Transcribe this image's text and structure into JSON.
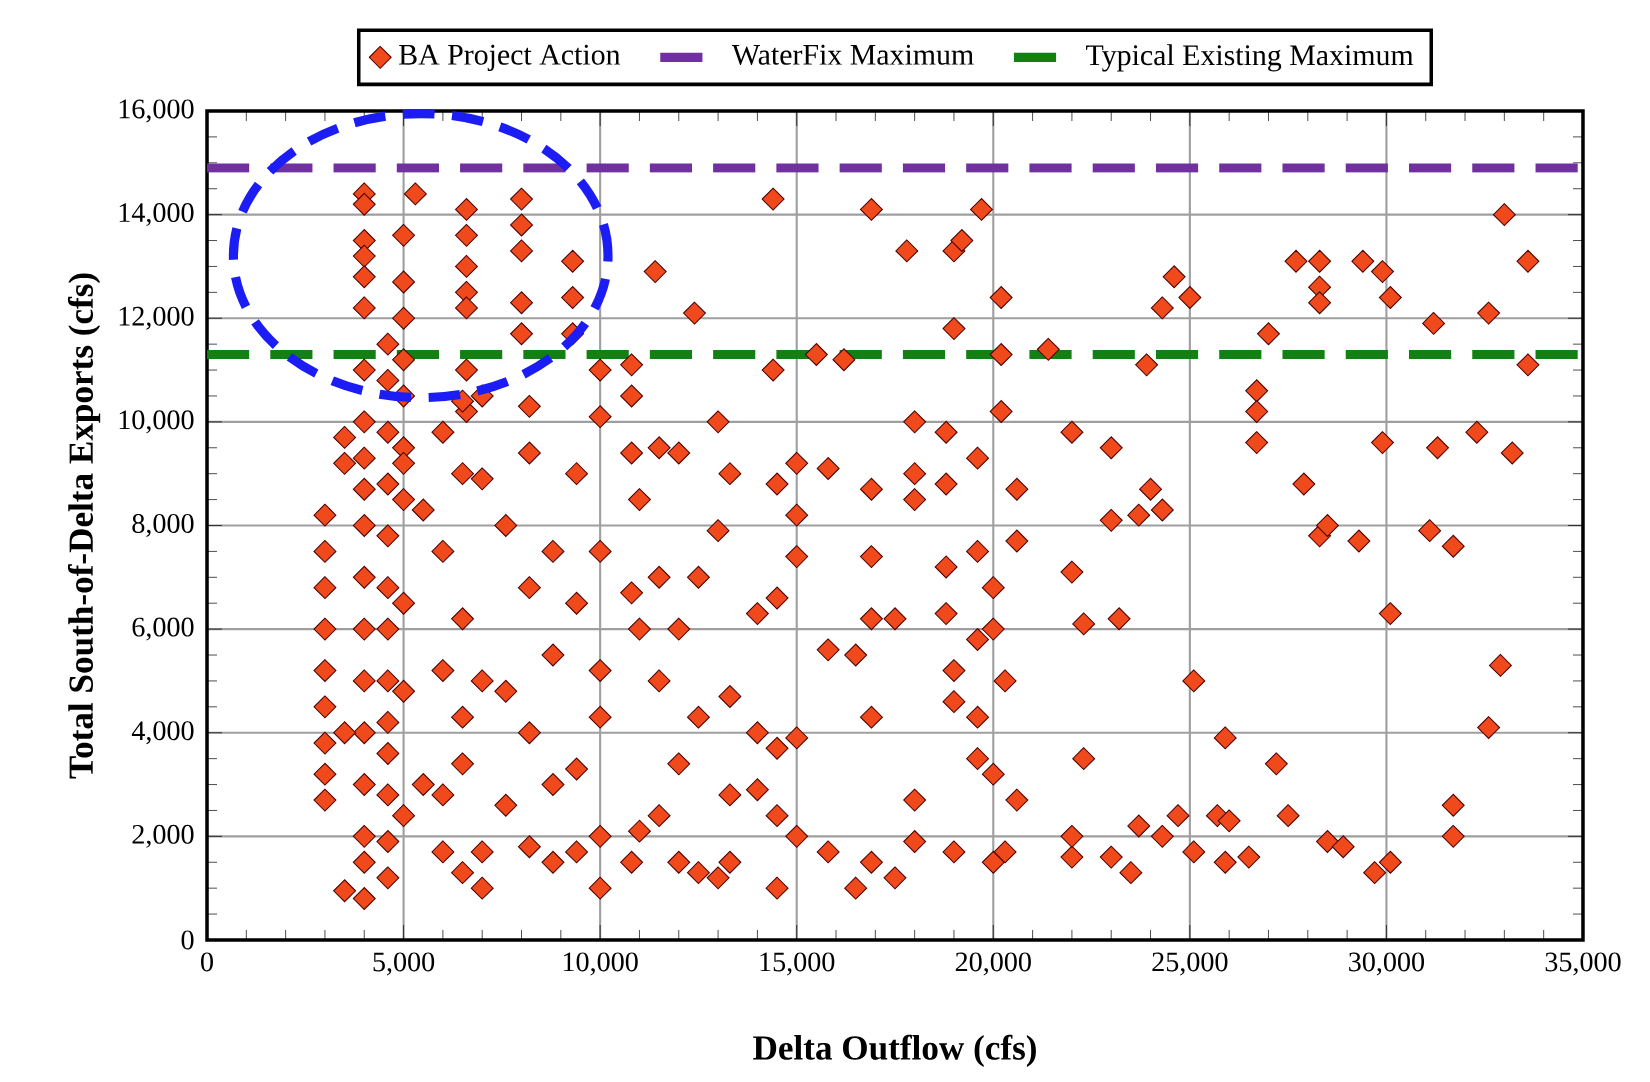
{
  "chart_data": {
    "type": "scatter",
    "xlabel": "Delta Outflow (cfs)",
    "ylabel": "Total South-of-Delta Exports (cfs)",
    "xlim": [
      0,
      35000
    ],
    "ylim": [
      0,
      16000
    ],
    "xticks": [
      0,
      {
        "value": 5000,
        "label": "5,000"
      },
      {
        "value": 10000,
        "label": "10,000"
      },
      {
        "value": 15000,
        "label": "15,000"
      },
      {
        "value": 20000,
        "label": "20,000"
      },
      {
        "value": 25000,
        "label": "25,000"
      },
      {
        "value": 30000,
        "label": "30,000"
      },
      {
        "value": 35000,
        "label": "35,000"
      }
    ],
    "yticks": [
      0,
      {
        "value": 2000,
        "label": "2,000"
      },
      {
        "value": 4000,
        "label": "4,000"
      },
      {
        "value": 6000,
        "label": "6,000"
      },
      {
        "value": 8000,
        "label": "8,000"
      },
      {
        "value": 10000,
        "label": "10,000"
      },
      {
        "value": 12000,
        "label": "12,000"
      },
      {
        "value": 14000,
        "label": "14,000"
      },
      {
        "value": 16000,
        "label": "16,000"
      }
    ],
    "grid": true,
    "legend": "top",
    "marker": "diamond",
    "series": [
      {
        "name": "BA Project Action",
        "color": "#f04a1c",
        "x": [
          4000,
          4000,
          4000,
          4000,
          4000,
          4000,
          4000,
          4000,
          4000,
          4000,
          4000,
          4000,
          4000,
          4000,
          4000,
          4000,
          4000,
          4000,
          4000,
          3000,
          3000,
          3000,
          3000,
          3000,
          3000,
          3000,
          3000,
          3000,
          3500,
          3500,
          3500,
          3500,
          4600,
          4600,
          4600,
          4600,
          4600,
          4600,
          4600,
          4600,
          4600,
          4600,
          4600,
          4600,
          4600,
          5300,
          5000,
          5000,
          5000,
          5000,
          5000,
          5000,
          5000,
          6600,
          6600,
          6600,
          6600,
          6600,
          6600,
          6600,
          8000,
          8000,
          8000,
          8000,
          8000,
          9300,
          9300,
          9300,
          10000,
          10000,
          11400,
          12400,
          14400,
          14400,
          16900,
          17800,
          19000,
          19200,
          19000,
          19700,
          20200,
          20200,
          20200,
          21400,
          15500,
          16200,
          23900,
          24300,
          24600,
          25000,
          26700,
          26700,
          26700,
          27000,
          27700,
          28300,
          28300,
          28300,
          29400,
          29900,
          30100,
          31200,
          32600,
          33000,
          33600,
          33600,
          22000,
          22000,
          22000,
          22000,
          22300,
          22300,
          23000,
          23000,
          23000,
          23200,
          23500,
          23700,
          23700,
          24000,
          24300,
          24300,
          24700,
          25100,
          25100,
          25700,
          25900,
          25900,
          26000,
          26500,
          27200,
          27500,
          27900,
          28300,
          28500,
          28500,
          28900,
          29300,
          29700,
          29900,
          30100,
          30100,
          31100,
          31300,
          31700,
          31700,
          31700,
          32300,
          32600,
          32900,
          33200,
          18000,
          18000,
          18000,
          18000,
          18000,
          18800,
          18800,
          18800,
          18800,
          19000,
          19000,
          19000,
          19600,
          19600,
          19600,
          19600,
          19600,
          20000,
          20000,
          20000,
          20000,
          20300,
          20300,
          20600,
          20600,
          20600,
          16900,
          16900,
          16900,
          16900,
          16900,
          17500,
          17500,
          16500,
          16500,
          15800,
          15800,
          15800,
          15000,
          15000,
          15000,
          15000,
          15000,
          14500,
          14500,
          14500,
          14500,
          14500,
          14000,
          14000,
          14000,
          13300,
          13300,
          13300,
          13300,
          13000,
          13000,
          13000,
          12500,
          12500,
          12500,
          12000,
          12000,
          12000,
          12000,
          11500,
          11500,
          11500,
          11500,
          11000,
          11000,
          11000,
          10800,
          10800,
          10800,
          10800,
          10800,
          10000,
          10000,
          10000,
          10000,
          10000,
          9400,
          9400,
          9400,
          9400,
          8800,
          8800,
          8800,
          8800,
          8200,
          8200,
          8200,
          8200,
          8200,
          7600,
          7600,
          7600,
          7000,
          7000,
          7000,
          7000,
          7000,
          6500,
          6500,
          6500,
          6500,
          6500,
          6500,
          6000,
          6000,
          6000,
          6000,
          6000,
          5500,
          5500,
          5000,
          5000,
          5000,
          5000
        ],
        "values": [
          14400,
          14200,
          13500,
          13200,
          12800,
          12200,
          11000,
          10000,
          9300,
          8700,
          8000,
          7000,
          6000,
          5000,
          4000,
          3000,
          2000,
          1500,
          800,
          8200,
          7500,
          6800,
          6000,
          5200,
          4500,
          3800,
          3200,
          2700,
          9700,
          9200,
          4000,
          950,
          11500,
          10800,
          9800,
          8800,
          7800,
          6800,
          6000,
          5000,
          4200,
          3600,
          2800,
          1900,
          1200,
          14400,
          13600,
          12700,
          12000,
          11200,
          10500,
          9500,
          8500,
          14100,
          13600,
          13000,
          12500,
          12200,
          11000,
          10200,
          14300,
          13800,
          13300,
          12300,
          11700,
          13100,
          12400,
          11700,
          11000,
          10100,
          12900,
          12100,
          14300,
          11000,
          14100,
          13300,
          13300,
          13500,
          11800,
          14100,
          12400,
          11300,
          10200,
          11400,
          11300,
          11200,
          11100,
          12200,
          12800,
          12400,
          10600,
          10200,
          9600,
          11700,
          13100,
          13100,
          12600,
          12300,
          13100,
          12900,
          12400,
          11900,
          12100,
          14000,
          13100,
          11100,
          9800,
          7100,
          1600,
          2000,
          6100,
          3500,
          9500,
          8100,
          1600,
          6200,
          1300,
          8200,
          2200,
          8700,
          8300,
          2000,
          2400,
          5000,
          1700,
          2400,
          3900,
          1500,
          2300,
          1600,
          3400,
          2400,
          8800,
          7800,
          8000,
          1900,
          1800,
          7700,
          1300,
          9600,
          6300,
          1500,
          7900,
          9500,
          7600,
          2600,
          2000,
          9800,
          4100,
          5300,
          9400,
          10000,
          9000,
          8500,
          2700,
          1900,
          9800,
          8800,
          7200,
          6300,
          5200,
          4600,
          1700,
          9300,
          7500,
          5800,
          4300,
          3500,
          6800,
          6000,
          3200,
          1500,
          5000,
          1700,
          7700,
          2700,
          8700,
          8700,
          7400,
          4300,
          6200,
          1500,
          6200,
          1200,
          5500,
          1000,
          5600,
          9100,
          1700,
          9200,
          8200,
          7400,
          3900,
          2000,
          8800,
          6600,
          3700,
          1000,
          2400,
          6300,
          4000,
          2900,
          9000,
          4700,
          2800,
          1500,
          10000,
          7900,
          1200,
          7000,
          4300,
          1300,
          9400,
          6000,
          3400,
          1500,
          9500,
          7000,
          5000,
          2400,
          8500,
          6000,
          2100,
          11100,
          10500,
          9400,
          6700,
          1500,
          7500,
          5200,
          4300,
          1000,
          2000,
          9000,
          6500,
          3300,
          1700,
          7500,
          5500,
          3000,
          1500,
          10300,
          9400,
          6800,
          4000,
          1800,
          8000,
          4800,
          2600,
          10500,
          8900,
          5000,
          1000,
          1700,
          10400,
          9000,
          6200,
          4300,
          3400,
          1300,
          9800,
          7500,
          5200,
          2800,
          1700,
          8300,
          3000,
          9200,
          6500,
          4800,
          2400
        ]
      }
    ],
    "ref_lines": [
      {
        "axis": "y",
        "value": 14900,
        "label": "WaterFix Maximum",
        "color": "#7030a0",
        "line_style": "dashed"
      },
      {
        "axis": "y",
        "value": 11300,
        "label": "Typical Existing Maximum",
        "color": "#128012",
        "line_style": "dashed"
      }
    ]
  }
}
